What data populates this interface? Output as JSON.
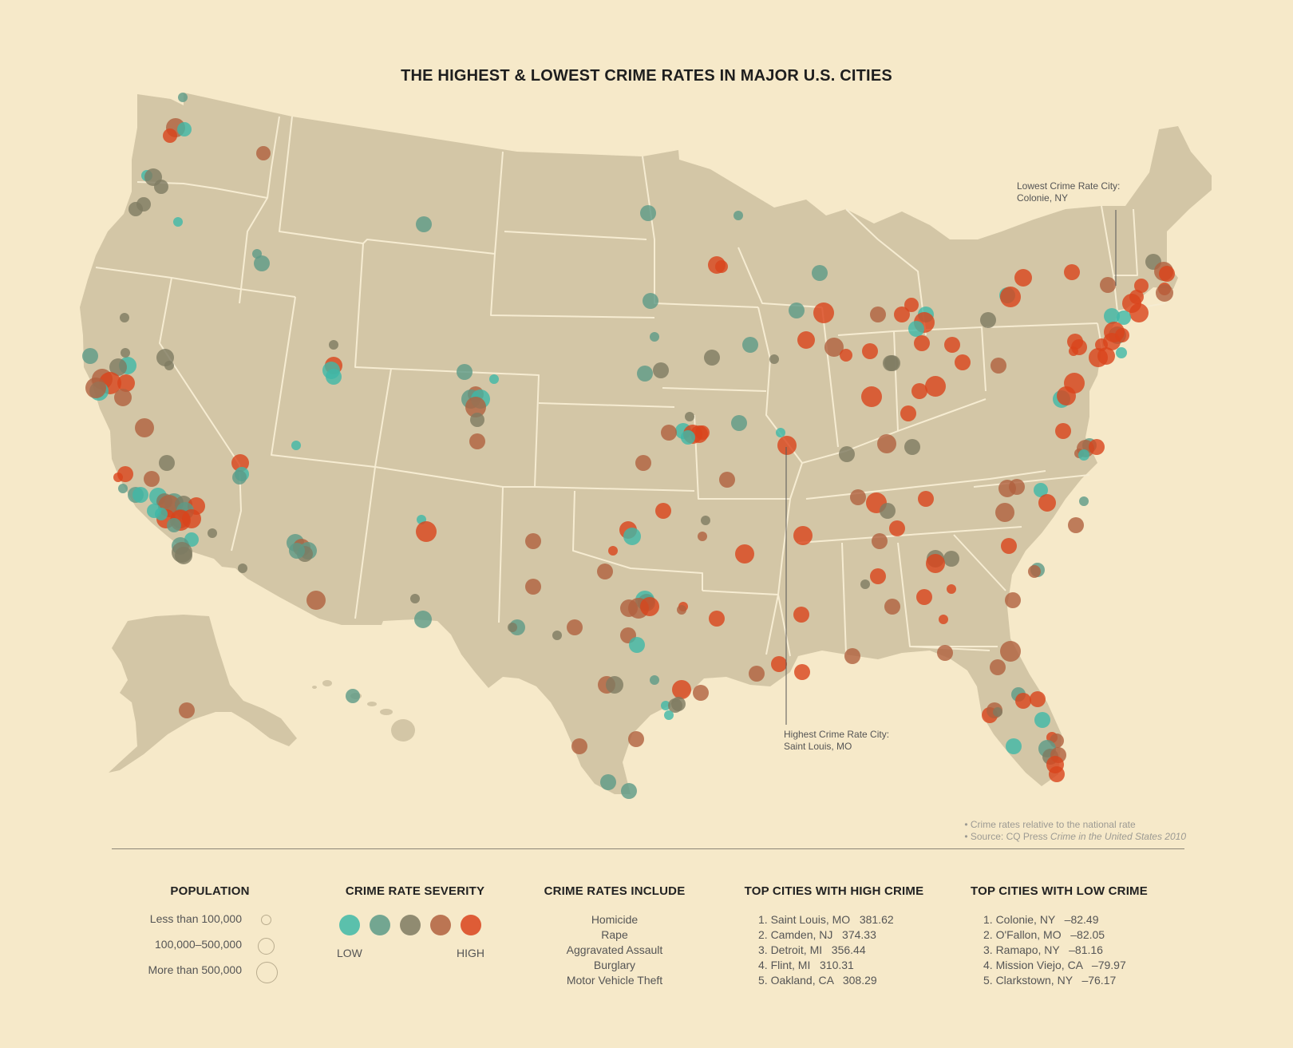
{
  "title": "THE HIGHEST & LOWEST CRIME RATES IN MAJOR U.S. CITIES",
  "annotations": {
    "lowest_line1": "Lowest Crime Rate City:",
    "lowest_line2": "Colonie, NY",
    "highest_line1": "Highest Crime Rate City:",
    "highest_line2": "Saint Louis, MO"
  },
  "notes": {
    "note1": "Crime rates relative to the national rate",
    "note2_prefix": "Source: CQ Press ",
    "note2_italic": "Crime in the United States 2010"
  },
  "legend": {
    "population": {
      "title": "POPULATION",
      "items": [
        "Less than 100,000",
        "100,000–500,000",
        "More than 500,000"
      ]
    },
    "severity": {
      "title": "CRIME RATE SEVERITY",
      "low": "LOW",
      "high": "HIGH",
      "colors": [
        "#3fb8a7",
        "#5c9a87",
        "#7e7a62",
        "#b0603e",
        "#d9431c"
      ]
    },
    "includes": {
      "title": "CRIME RATES INCLUDE",
      "items": [
        "Homicide",
        "Rape",
        "Aggravated Assault",
        "Burglary",
        "Motor Vehicle Theft"
      ]
    },
    "high_crime": {
      "title": "TOP CITIES WITH HIGH CRIME",
      "items": [
        "1. Saint Louis, MO   381.62",
        "2. Camden, NJ   374.33",
        "3. Detroit, MI   356.44",
        "4. Flint, MI   310.31",
        "5. Oakland, CA   308.29"
      ]
    },
    "low_crime": {
      "title": "TOP CITIES WITH LOW CRIME",
      "items": [
        "1. Colonie, NY   –82.49",
        "2. O'Fallon, MO   –82.05",
        "3. Ramapo, NY   –81.16",
        "4. Mission Viejo, CA   –79.97",
        "5. Clarkstown, NY   –76.17"
      ]
    }
  },
  "map_colors": {
    "land": "#d3c6a6",
    "border": "#f6ecd2",
    "bg": "#f6e9c9"
  }
}
